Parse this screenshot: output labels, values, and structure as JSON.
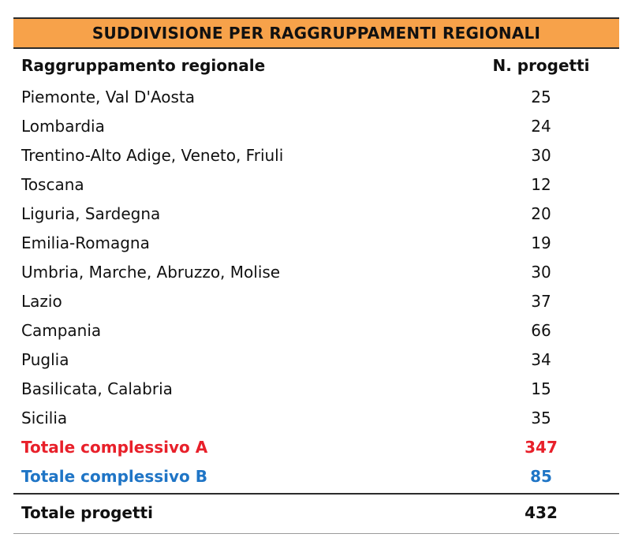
{
  "table": {
    "title": "SUDDIVISIONE PER RAGGRUPPAMENTI REGIONALI",
    "header": {
      "region": "Raggruppamento regionale",
      "count": "N. progetti"
    },
    "rows": [
      {
        "region": "Piemonte, Val D'Aosta",
        "count": "25"
      },
      {
        "region": "Lombardia",
        "count": "24"
      },
      {
        "region": "Trentino-Alto Adige, Veneto, Friuli",
        "count": "30"
      },
      {
        "region": "Toscana",
        "count": "12"
      },
      {
        "region": "Liguria, Sardegna",
        "count": "20"
      },
      {
        "region": "Emilia-Romagna",
        "count": "19"
      },
      {
        "region": "Umbria, Marche, Abruzzo, Molise",
        "count": "30"
      },
      {
        "region": "Lazio",
        "count": "37"
      },
      {
        "region": "Campania",
        "count": "66"
      },
      {
        "region": "Puglia",
        "count": "34"
      },
      {
        "region": "Basilicata, Calabria",
        "count": "15"
      },
      {
        "region": "Sicilia",
        "count": "35"
      }
    ],
    "total_a": {
      "label": "Totale complessivo A",
      "count": "347"
    },
    "total_b": {
      "label": "Totale complessivo B",
      "count": "85"
    },
    "grand_total": {
      "label": "Totale progetti",
      "count": "432"
    }
  },
  "colors": {
    "title_background": "#f7a24a",
    "total_a": "#e8202a",
    "total_b": "#1f75c6"
  }
}
